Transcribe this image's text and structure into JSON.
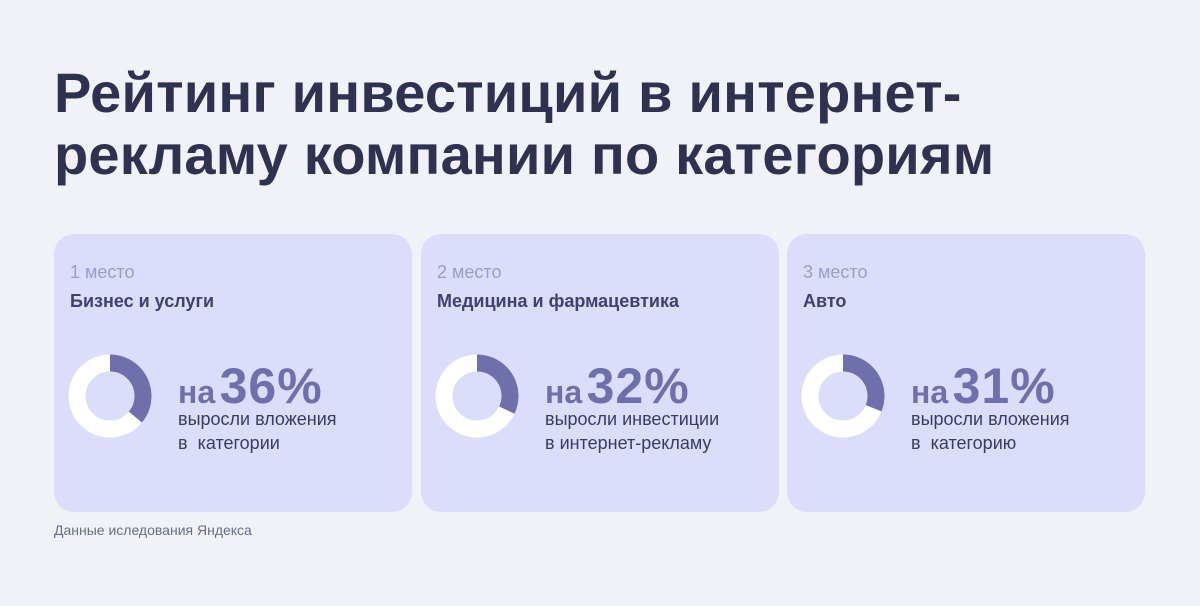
{
  "title": {
    "line1": "Рейтинг инвестиций в интернет-",
    "line2": "рекламу компании по категориям"
  },
  "chart_data": {
    "type": "pie",
    "title": "Рейтинг инвестиций в интернет-рекламу компании по категориям",
    "items": [
      {
        "rank": "1 место",
        "category": "Бизнес и услуги",
        "prefix": "на",
        "value": 36,
        "value_label": "36%",
        "description": "выросли вложения\nв  категории"
      },
      {
        "rank": "2 место",
        "category": "Медицина и фармацевтика",
        "prefix": "на",
        "value": 32,
        "value_label": "32%",
        "description": "выросли инвестиции\nв интернет-рекламу"
      },
      {
        "rank": "3 место",
        "category": "Авто",
        "prefix": "на",
        "value": 31,
        "value_label": "31%",
        "description": "выросли вложения\nв  категорию"
      }
    ]
  },
  "colors": {
    "background": "#f1f2f7",
    "card": "#dcdcfb",
    "accent": "#6e6fab",
    "donut_track": "#ffffff"
  },
  "source": "Данные иследования Яндекса"
}
